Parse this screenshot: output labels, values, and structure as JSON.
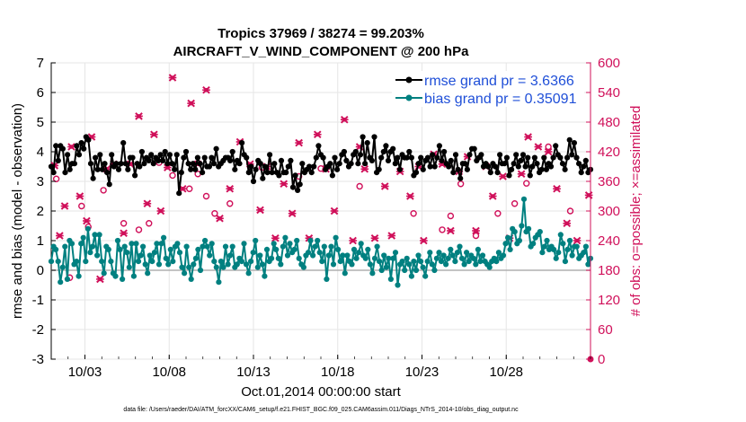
{
  "chart_data": {
    "type": "line",
    "title": "Tropics 37969 / 38274 = 99.203%",
    "subtitle": "AIRCRAFT_V_WIND_COMPONENT @ 200 hPa",
    "xlabel": "Oct.01,2014 00:00:00 start",
    "ylabel_left": "rmse and bias (model - observation)",
    "ylabel_right": "# of obs: o=possible; ×=assimilated",
    "footnote": "data file: /Users/raeder/DAI/ATM_forcXX/CAM6_setup/f.e21.FHIST_BGC.f09_025.CAM6assim.011/Diags_NTrS_2014-10/obs_diag_output.nc",
    "x_tick_labels": [
      "10/03",
      "10/08",
      "10/13",
      "10/18",
      "10/23",
      "10/28"
    ],
    "x_tick_days": [
      3,
      8,
      13,
      18,
      23,
      28
    ],
    "x_range_days": [
      1,
      33
    ],
    "ylim_left": [
      -3,
      7
    ],
    "ylim_right": [
      0,
      600
    ],
    "y_ticks_left": [
      "-3",
      "-2",
      "-1",
      "0",
      "1",
      "2",
      "3",
      "4",
      "5",
      "6",
      "7"
    ],
    "y_ticks_right": [
      "0",
      "60",
      "120",
      "180",
      "240",
      "300",
      "360",
      "420",
      "480",
      "540",
      "600"
    ],
    "colors": {
      "rmse": "#000000",
      "bias": "#008080",
      "obs": "#d0105a",
      "legend_text": "#1f4fd8",
      "zero_line": "#b0b0b0"
    },
    "series": [
      {
        "name": "rmse grand pr = 3.6366",
        "axis": "left",
        "values": [
          3.5,
          3.3,
          4.2,
          3.7,
          4.2,
          4.1,
          3.3,
          3.9,
          3.4,
          3.6,
          3.6,
          4.2,
          3.9,
          4.3,
          4.1,
          4.5,
          4.4,
          3.6,
          3.1,
          3.8,
          3.4,
          3.9,
          3.4,
          3.6,
          3.3,
          2.9,
          3.9,
          3.5,
          3.6,
          3.4,
          3.6,
          4.3,
          3.6,
          3.4,
          3.8,
          3.8,
          3.2,
          3.6,
          3.5,
          4.0,
          3.6,
          3.8,
          3.7,
          3.9,
          3.6,
          3.8,
          3.7,
          3.9,
          3.7,
          4.0,
          3.6,
          3.9,
          3.6,
          3.4,
          3.9,
          2.6,
          3.3,
          3.8,
          4.0,
          3.6,
          3.4,
          3.6,
          3.4,
          3.8,
          3.6,
          3.3,
          3.8,
          3.5,
          3.5,
          3.8,
          3.6,
          4.1,
          3.5,
          3.6,
          3.7,
          3.8,
          3.8,
          3.7,
          4.0,
          3.4,
          3.7,
          3.6,
          4.3,
          3.9,
          3.8,
          3.3,
          3.5,
          3.0,
          3.4,
          3.7,
          3.6,
          3.1,
          3.5,
          3.3,
          3.9,
          3.3,
          3.6,
          3.3,
          3.2,
          3.7,
          3.3,
          3.3,
          3.5,
          3.7,
          2.8,
          3.2,
          2.7,
          2.9,
          3.6,
          3.3,
          3.4,
          3.5,
          3.3,
          3.5,
          3.8,
          4.2,
          3.9,
          3.8,
          3.4,
          3.5,
          3.6,
          3.2,
          3.8,
          3.4,
          3.6,
          3.9,
          4.0,
          3.7,
          3.5,
          3.6,
          3.9,
          4.0,
          3.6,
          3.9,
          4.5,
          3.6,
          4.3,
          3.8,
          3.7,
          4.5,
          3.3,
          3.4,
          3.8,
          4.0,
          4.2,
          3.7,
          4.0,
          4.1,
          3.6,
          3.8,
          3.4,
          3.9,
          3.8,
          3.8,
          4.0,
          3.8,
          3.2,
          3.3,
          3.6,
          3.8,
          3.4,
          3.7,
          3.8,
          3.5,
          3.9,
          3.5,
          3.8,
          4.2,
          3.7,
          4.0,
          3.6,
          3.5,
          3.7,
          3.3,
          3.9,
          3.4,
          3.1,
          3.6,
          3.6,
          3.4,
          3.9,
          4.1,
          4.1,
          3.7,
          3.8,
          3.9,
          3.5,
          3.6,
          3.5,
          3.3,
          3.6,
          3.5,
          3.3,
          3.9,
          3.6,
          3.6,
          3.8,
          3.2,
          3.4,
          3.6,
          3.9,
          3.5,
          3.7,
          3.9,
          3.5,
          3.8,
          3.2,
          3.5,
          3.8,
          3.6,
          3.3,
          3.4,
          3.8,
          3.4,
          3.6,
          3.5,
          3.8,
          4.2,
          3.9,
          3.8,
          3.6,
          3.4,
          3.8,
          4.4,
          3.9,
          4.3,
          3.8,
          3.6,
          3.3,
          3.5,
          3.7,
          3.3,
          3.4
        ]
      },
      {
        "name": "bias grand pr = 0.35091",
        "axis": "left",
        "values": [
          0.3,
          0.8,
          0.7,
          0.3,
          -0.4,
          0.1,
          0.8,
          -0.3,
          1.0,
          0.9,
          0.2,
          0.3,
          -0.2,
          0.9,
          1.1,
          0.3,
          1.4,
          0.6,
          0.8,
          1.2,
          0.5,
          1.2,
          0.3,
          -0.1,
          0.8,
          0.7,
          0.3,
          -0.1,
          -0.2,
          1.0,
          0.7,
          -0.3,
          0.8,
          0.6,
          0.1,
          0.9,
          -0.2,
          0.9,
          0.3,
          0.5,
          0.8,
          0.2,
          -0.1,
          0.5,
          0.3,
          0.6,
          0.9,
          0.2,
          0.9,
          1.1,
          0.4,
          0.2,
          0.7,
          0.3,
          0.8,
          0.9,
          0.6,
          0.1,
          -0.1,
          0.8,
          0.1,
          -0.3,
          0.2,
          0.4,
          0.7,
          0.0,
          0.8,
          1.0,
          0.8,
          0.5,
          0.9,
          0.3,
          0.1,
          -0.4,
          0.3,
          0.1,
          0.8,
          0.2,
          0.5,
          0.8,
          0.1,
          0.2,
          0.4,
          0.3,
          0.9,
          0.2,
          -0.1,
          0.3,
          0.6,
          1.0,
          0.1,
          0.5,
          0.2,
          -0.2,
          0.7,
          0.3,
          0.4,
          0.9,
          0.7,
          0.4,
          0.2,
          0.8,
          1.1,
          0.5,
          0.9,
          0.6,
          0.7,
          1.0,
          0.4,
          0.2,
          0.1,
          0.5,
          0.6,
          1.0,
          0.5,
          0.8,
          1.0,
          0.6,
          0.3,
          0.8,
          -0.3,
          0.5,
          0.8,
          0.2,
          1.1,
          0.7,
          0.3,
          0.5,
          -0.1,
          0.5,
          0.3,
          0.2,
          0.7,
          0.4,
          0.6,
          0.9,
          0.5,
          0.4,
          0.7,
          0.2,
          -0.1,
          0.4,
          0.8,
          0.3,
          0.0,
          0.5,
          0.1,
          0.4,
          -0.3,
          0.4,
          0.6,
          -0.5,
          0.2,
          0.3,
          0.0,
          0.4,
          0.2,
          -0.2,
          0.3,
          0.0,
          0.5,
          0.3,
          0.1,
          -0.2,
          0.3,
          0.6,
          0.2,
          0.0,
          0.4,
          0.6,
          0.3,
          0.5,
          0.2,
          0.4,
          0.7,
          0.5,
          0.3,
          0.6,
          0.8,
          0.4,
          0.2,
          0.6,
          0.3,
          0.5,
          0.4,
          0.2,
          0.7,
          0.3,
          0.5,
          0.3,
          0.2,
          0.1,
          0.3,
          0.4,
          0.3,
          0.6,
          0.4,
          0.5,
          0.9,
          1.1,
          0.7,
          1.4,
          1.3,
          0.9,
          1.0,
          1.5,
          2.4,
          1.3,
          1.4,
          0.8,
          0.9,
          1.1,
          1.2,
          1.3,
          0.6,
          0.8,
          1.0,
          0.7,
          0.8,
          0.7,
          0.4,
          0.6,
          1.2,
          0.9,
          0.3,
          0.7,
          1.0,
          0.5,
          0.8,
          0.8,
          0.4,
          0.5,
          0.6,
          0.8,
          0.2,
          0.4
        ]
      }
    ],
    "obs_possible": [
      [
        1.3,
        365
      ],
      [
        2.1,
        165
      ],
      [
        2.8,
        310
      ],
      [
        3.2,
        268
      ],
      [
        4.1,
        342
      ],
      [
        5.3,
        275
      ],
      [
        6.2,
        262
      ],
      [
        6.8,
        275
      ],
      [
        7.4,
        398
      ],
      [
        8.2,
        372
      ],
      [
        9.2,
        345
      ],
      [
        9.7,
        375
      ],
      [
        10.2,
        330
      ],
      [
        10.7,
        295
      ],
      [
        11.6,
        315
      ],
      [
        13.5,
        388
      ],
      [
        15.7,
        370
      ],
      [
        17.0,
        386
      ],
      [
        19.3,
        350
      ],
      [
        22.5,
        295
      ],
      [
        24.2,
        262
      ],
      [
        24.7,
        290
      ],
      [
        25.3,
        355
      ],
      [
        26.2,
        250
      ],
      [
        27.5,
        295
      ],
      [
        28.5,
        315
      ],
      [
        29.2,
        356
      ],
      [
        30.5,
        430
      ],
      [
        31.8,
        300
      ]
    ],
    "obs_assimilated": [
      [
        1.2,
        392
      ],
      [
        1.5,
        250
      ],
      [
        1.8,
        310
      ],
      [
        2.2,
        430
      ],
      [
        2.7,
        330
      ],
      [
        3.1,
        280
      ],
      [
        3.4,
        450
      ],
      [
        3.9,
        162
      ],
      [
        4.3,
        385
      ],
      [
        4.7,
        395
      ],
      [
        5.3,
        255
      ],
      [
        5.7,
        395
      ],
      [
        6.2,
        492
      ],
      [
        6.7,
        315
      ],
      [
        7.1,
        455
      ],
      [
        7.5,
        300
      ],
      [
        7.9,
        388
      ],
      [
        8.2,
        570
      ],
      [
        8.8,
        345
      ],
      [
        9.3,
        518
      ],
      [
        9.7,
        395
      ],
      [
        10.2,
        545
      ],
      [
        11.0,
        285
      ],
      [
        11.6,
        345
      ],
      [
        12.2,
        440
      ],
      [
        12.8,
        395
      ],
      [
        13.4,
        302
      ],
      [
        13.8,
        390
      ],
      [
        14.3,
        245
      ],
      [
        14.8,
        355
      ],
      [
        15.3,
        295
      ],
      [
        15.7,
        438
      ],
      [
        16.3,
        245
      ],
      [
        16.8,
        455
      ],
      [
        17.3,
        385
      ],
      [
        17.8,
        300
      ],
      [
        18.4,
        485
      ],
      [
        18.9,
        240
      ],
      [
        19.3,
        430
      ],
      [
        19.6,
        385
      ],
      [
        20.2,
        245
      ],
      [
        20.8,
        350
      ],
      [
        21.2,
        250
      ],
      [
        21.7,
        380
      ],
      [
        22.3,
        330
      ],
      [
        22.8,
        390
      ],
      [
        23.1,
        240
      ],
      [
        23.7,
        415
      ],
      [
        24.2,
        395
      ],
      [
        24.7,
        260
      ],
      [
        25.2,
        380
      ],
      [
        25.7,
        410
      ],
      [
        26.2,
        260
      ],
      [
        26.8,
        390
      ],
      [
        27.2,
        330
      ],
      [
        27.8,
        370
      ],
      [
        28.2,
        245
      ],
      [
        28.9,
        375
      ],
      [
        29.3,
        450
      ],
      [
        29.9,
        430
      ],
      [
        30.5,
        420
      ],
      [
        31.0,
        345
      ],
      [
        31.6,
        275
      ],
      [
        32.2,
        240
      ],
      [
        32.9,
        332
      ]
    ]
  }
}
